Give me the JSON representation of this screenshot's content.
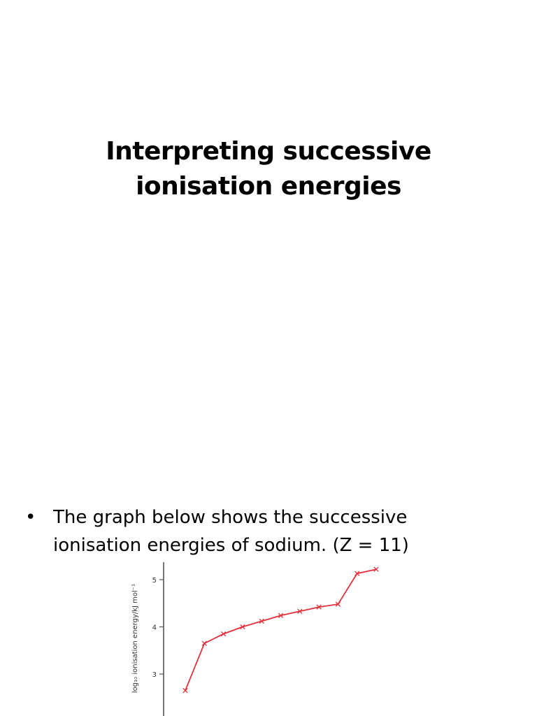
{
  "slide": {
    "title": "Interpreting successive ionisation energies",
    "bullet_mark": "•",
    "bullet_text": "The graph below shows the successive ionisation energies of sodium. (Z = 11)"
  },
  "colors": {
    "series": "#e0303a",
    "axis": "#555555",
    "text": "#000000"
  },
  "chart_data": {
    "type": "line",
    "title": "",
    "xlabel": "",
    "ylabel": "log₁₀ ionisation energy/kJ mol⁻¹",
    "yticks": [
      "3",
      "4",
      "5"
    ],
    "ylim": [
      2.4,
      5.2
    ],
    "x": [
      1,
      2,
      3,
      4,
      5,
      6,
      7,
      8,
      9,
      10,
      11
    ],
    "series": [
      {
        "values": [
          2.65,
          3.65,
          3.85,
          4.0,
          4.12,
          4.24,
          4.33,
          4.42,
          4.48,
          5.13,
          5.22
        ]
      }
    ]
  }
}
